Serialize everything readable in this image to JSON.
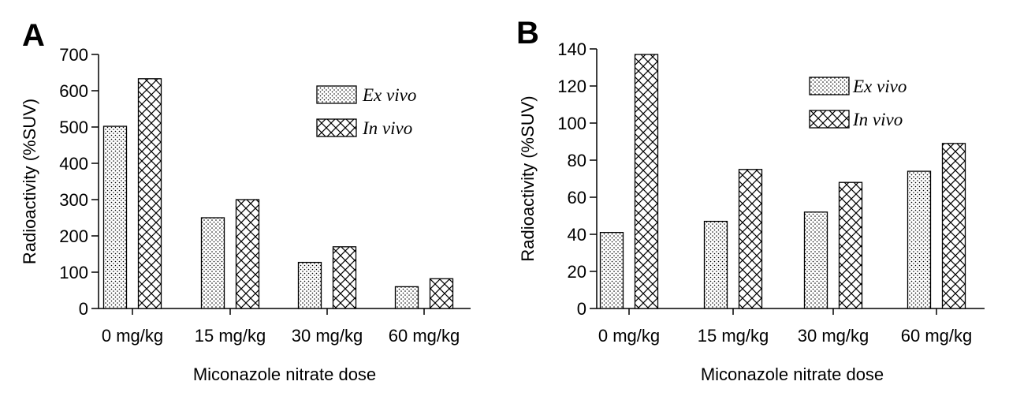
{
  "chart_data": [
    {
      "panel": "A",
      "type": "bar",
      "categories": [
        "0 mg/kg",
        "15 mg/kg",
        "30 mg/kg",
        "60 mg/kg"
      ],
      "series": [
        {
          "name": "Ex vivo",
          "values": [
            502,
            250,
            127,
            60
          ]
        },
        {
          "name": "In vivo",
          "values": [
            633,
            300,
            170,
            82
          ]
        }
      ],
      "xlabel": "Miconazole nitrate dose",
      "ylabel": "Radioactivity (%SUV)",
      "ylim": [
        0,
        700
      ],
      "yticks": [
        0,
        100,
        200,
        300,
        400,
        500,
        600,
        700
      ],
      "grid": false,
      "legend": "top-right"
    },
    {
      "panel": "B",
      "type": "bar",
      "categories": [
        "0 mg/kg",
        "15 mg/kg",
        "30 mg/kg",
        "60 mg/kg"
      ],
      "series": [
        {
          "name": "Ex vivo",
          "values": [
            41,
            47,
            52,
            74
          ]
        },
        {
          "name": "In vivo",
          "values": [
            137,
            75,
            68,
            89
          ]
        }
      ],
      "xlabel": "Miconazole nitrate dose",
      "ylabel": "Radioactivity (%SUV)",
      "ylim": [
        0,
        140
      ],
      "yticks": [
        0,
        20,
        40,
        60,
        80,
        100,
        120,
        140
      ],
      "grid": false,
      "legend": "top-right"
    }
  ]
}
